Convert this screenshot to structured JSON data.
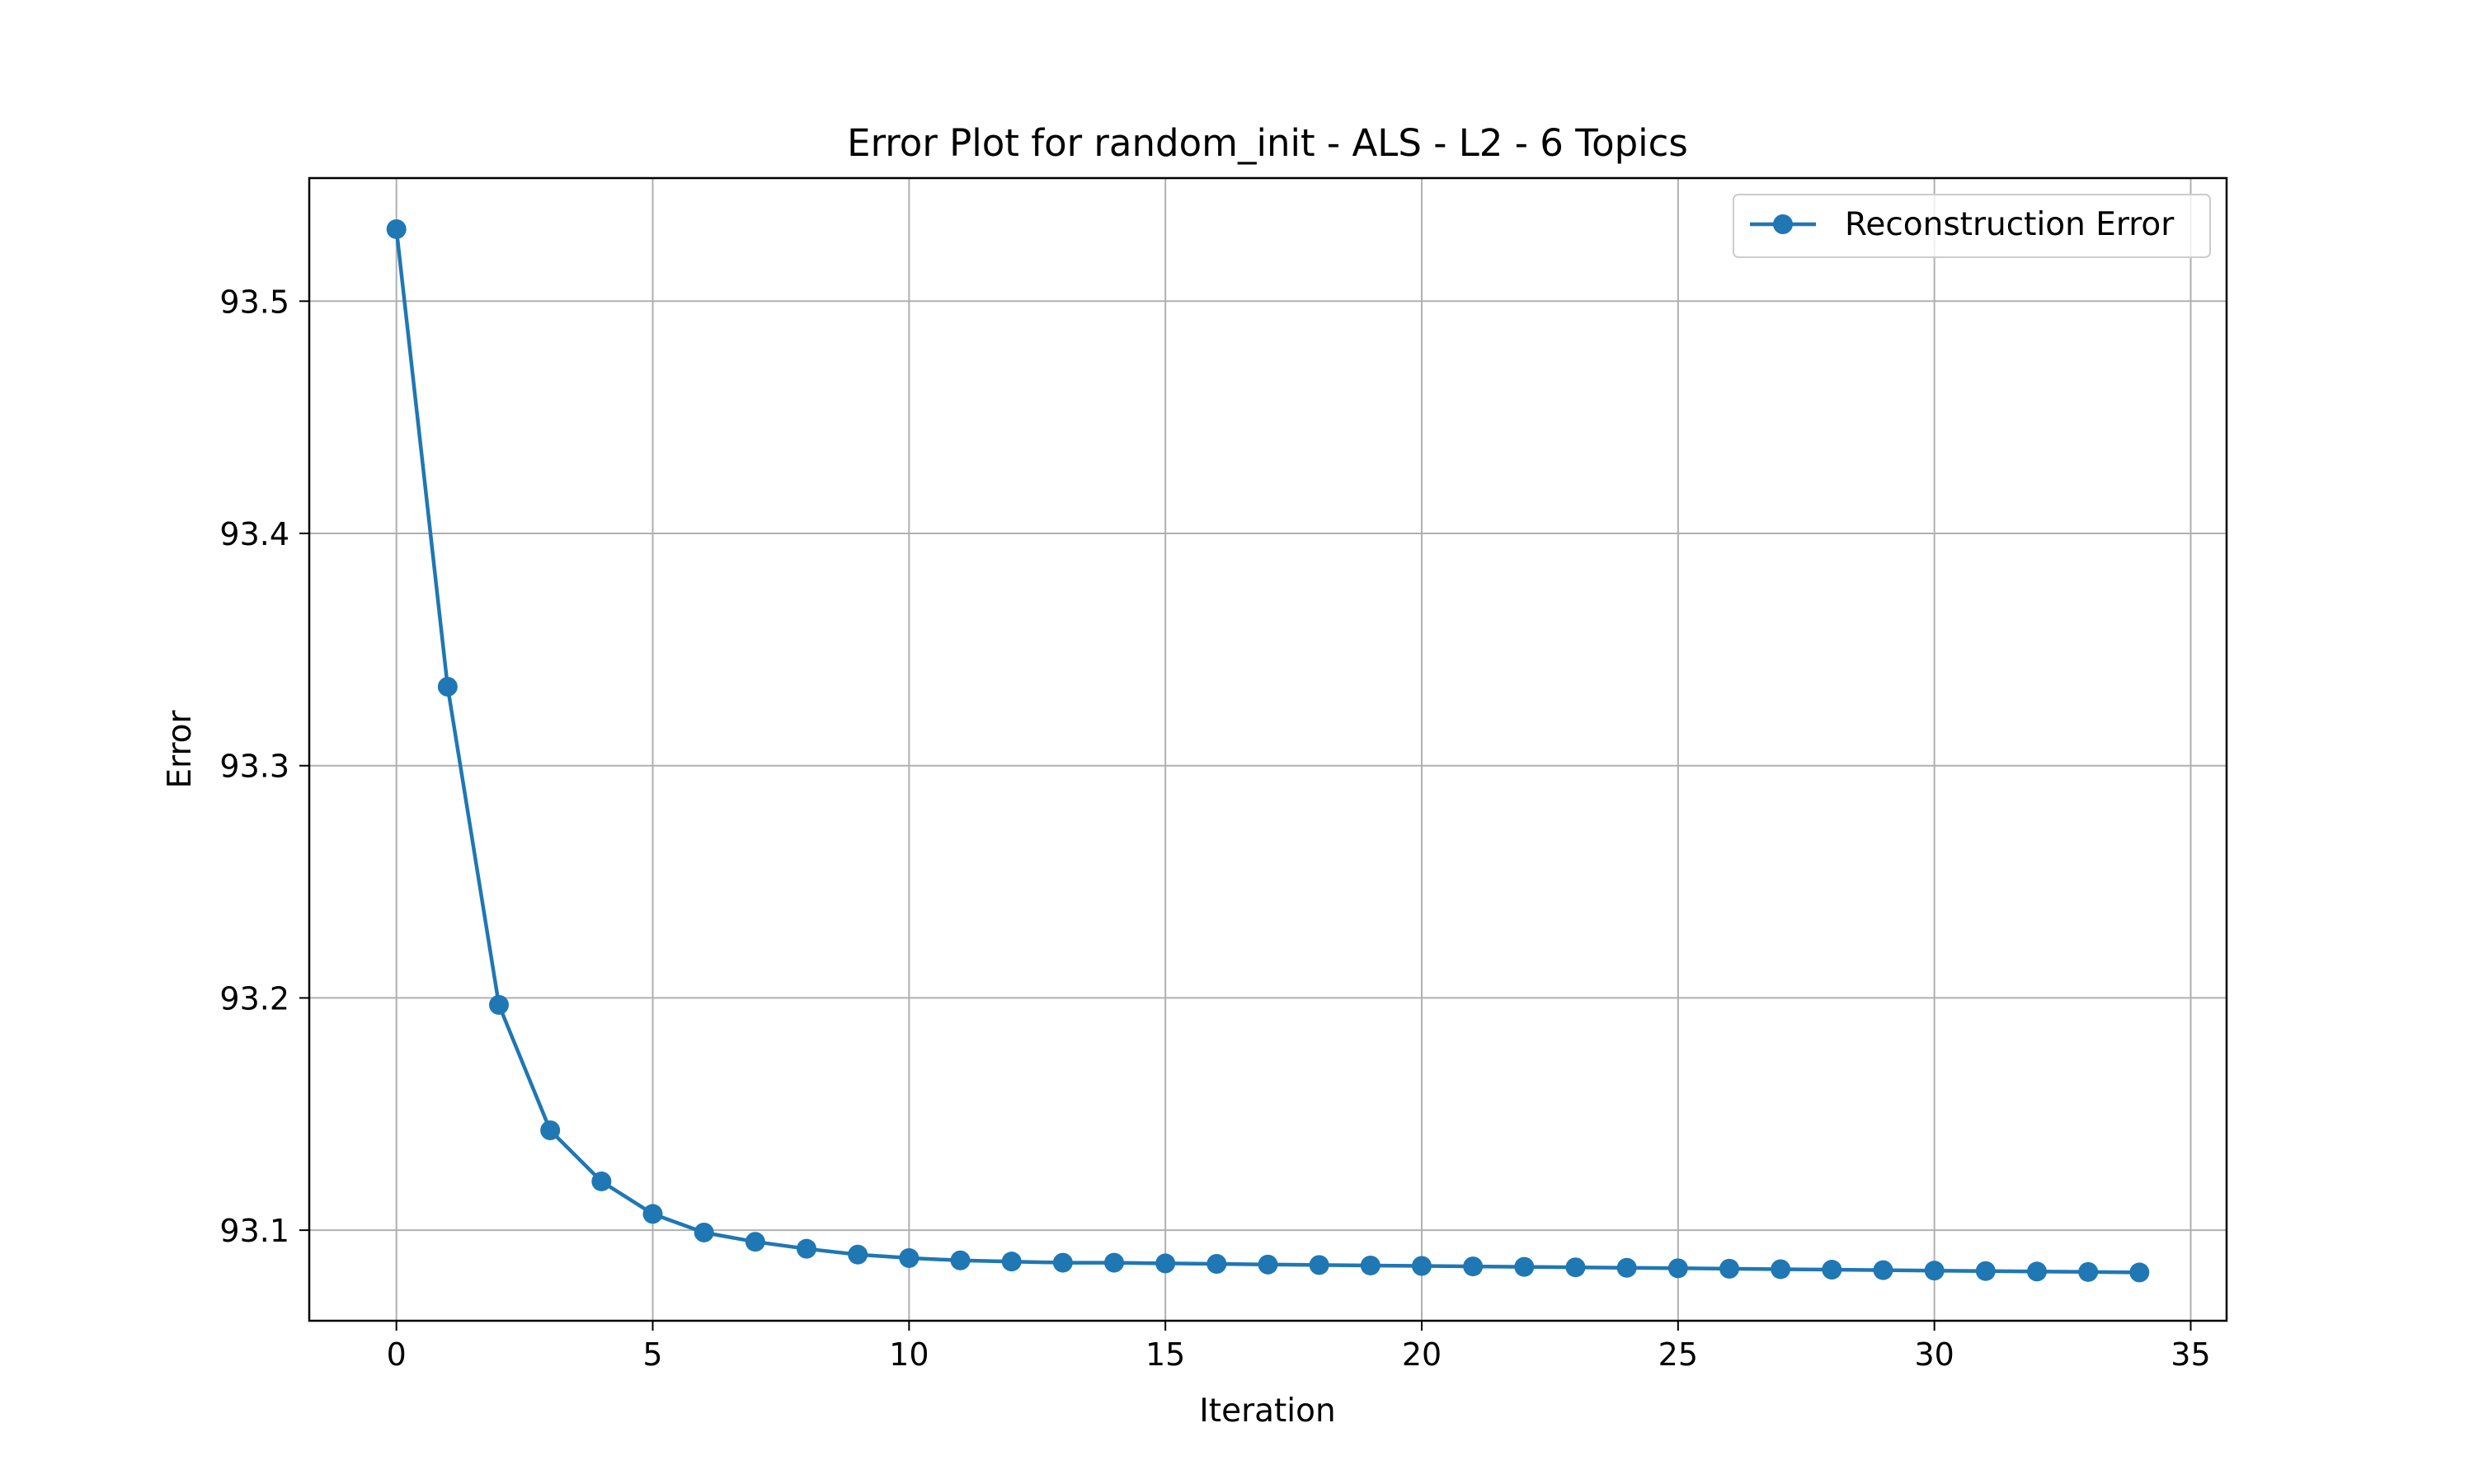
{
  "chart_data": {
    "type": "line",
    "title": "Error Plot for random_init - ALS - L2 - 6 Topics",
    "xlabel": "Iteration",
    "ylabel": "Error",
    "xlim": [
      -1.7,
      35.7
    ],
    "ylim": [
      93.061,
      93.553
    ],
    "xticks": [
      0,
      5,
      10,
      15,
      20,
      25,
      30,
      35
    ],
    "yticks": [
      93.1,
      93.2,
      93.3,
      93.4,
      93.5
    ],
    "xtick_labels": [
      "0",
      "5",
      "10",
      "15",
      "20",
      "25",
      "30",
      "35"
    ],
    "ytick_labels": [
      "93.1",
      "93.2",
      "93.3",
      "93.4",
      "93.5"
    ],
    "grid": true,
    "legend_position": "top-right",
    "series": [
      {
        "name": "Reconstruction Error",
        "color": "#1f77b4",
        "marker": "circle",
        "x": [
          0,
          1,
          2,
          3,
          4,
          5,
          6,
          7,
          8,
          9,
          10,
          11,
          12,
          13,
          14,
          15,
          16,
          17,
          18,
          19,
          20,
          21,
          22,
          23,
          24,
          25,
          26,
          27,
          28,
          29,
          30,
          31,
          32,
          33,
          34
        ],
        "y": [
          93.531,
          93.334,
          93.197,
          93.143,
          93.121,
          93.107,
          93.099,
          93.095,
          93.092,
          93.0895,
          93.088,
          93.087,
          93.0865,
          93.086,
          93.086,
          93.0857,
          93.0855,
          93.0852,
          93.085,
          93.0848,
          93.0846,
          93.0844,
          93.0842,
          93.084,
          93.0838,
          93.0836,
          93.0834,
          93.0832,
          93.083,
          93.0828,
          93.0826,
          93.0824,
          93.0822,
          93.082,
          93.0818
        ]
      }
    ]
  }
}
